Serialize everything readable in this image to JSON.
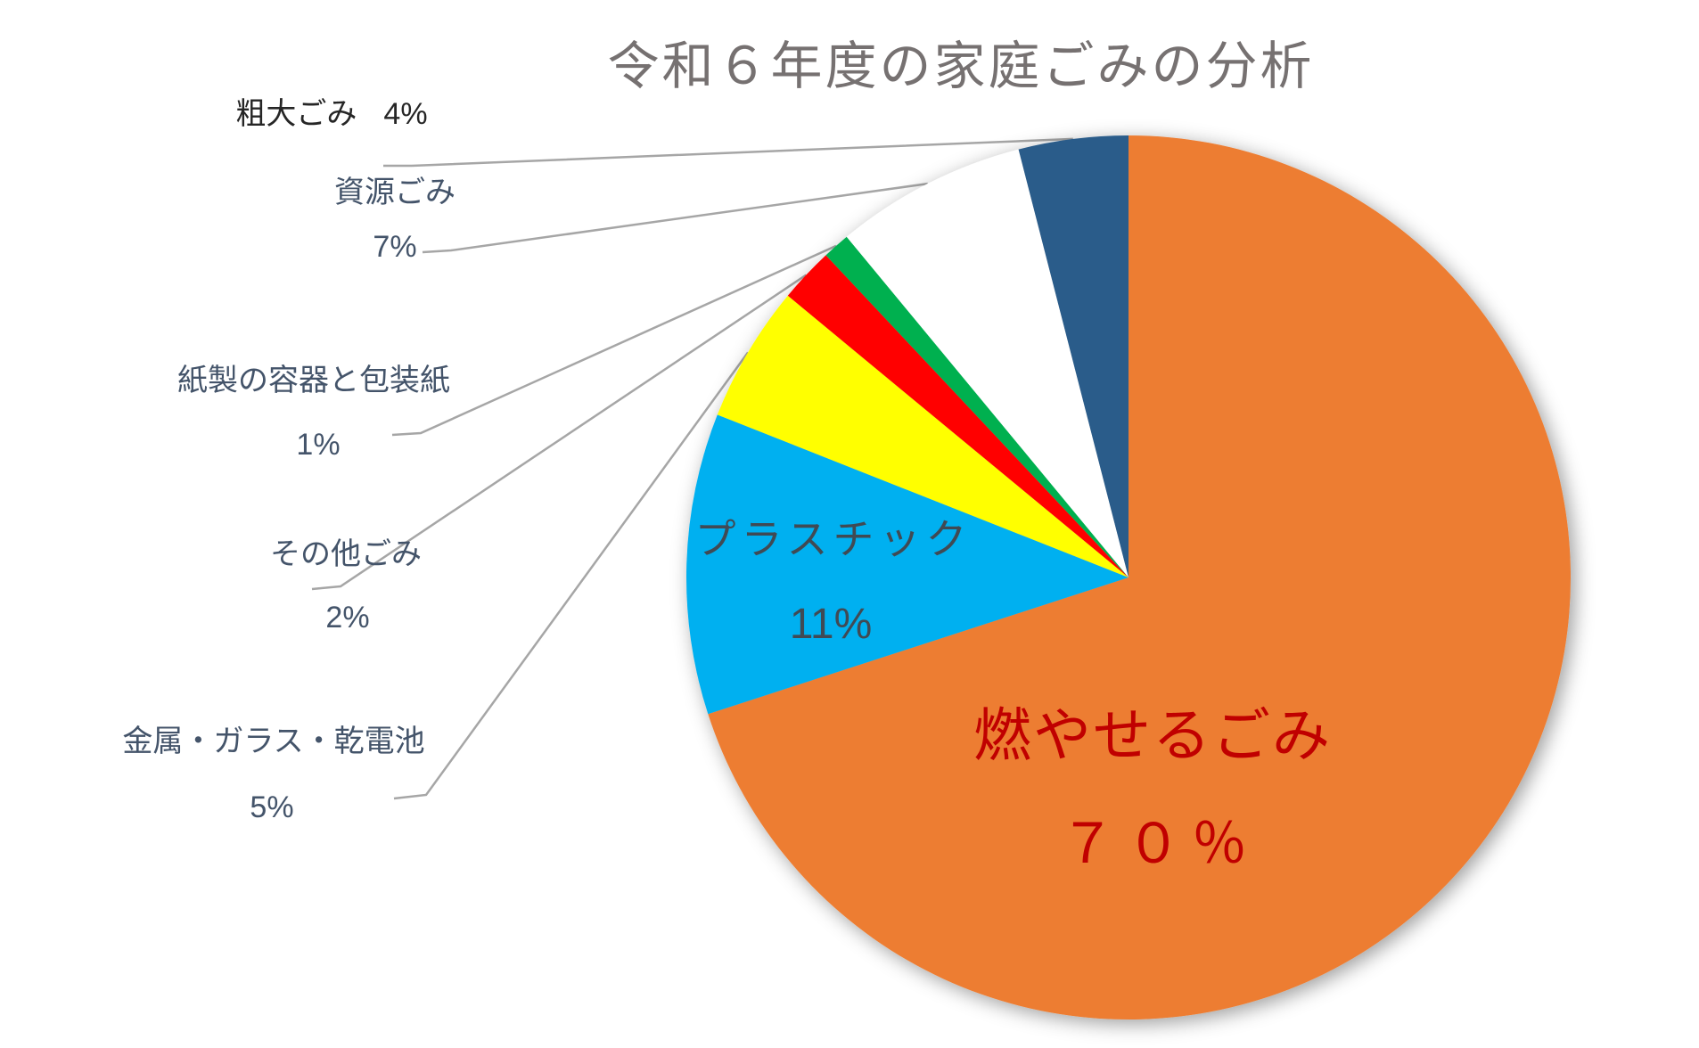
{
  "chart_data": {
    "type": "pie",
    "title": "令和６年度の家庭ごみの分析",
    "title_color": "#767171",
    "start_angle_deg": 0,
    "direction": "clockwise",
    "legend": "none",
    "leader_line_color": "#A6A6A6",
    "slices": [
      {
        "id": "moyaseru",
        "label": "燃やせるごみ",
        "value_pct": 70,
        "value_text": "７０％",
        "color": "#ED7D31",
        "label_placement": "inside",
        "label_color": "#C00000"
      },
      {
        "id": "plastic",
        "label": "プラスチック",
        "value_pct": 11,
        "value_text": "11%",
        "color": "#00B0F0",
        "label_placement": "inside",
        "label_color": "#404A54"
      },
      {
        "id": "kinzoku",
        "label": "金属・ガラス・乾電池",
        "value_pct": 5,
        "value_text": "5%",
        "color": "#FFFF00",
        "label_placement": "outside",
        "label_color": "#44546A"
      },
      {
        "id": "sonota",
        "label": "その他ごみ",
        "value_pct": 2,
        "value_text": "2%",
        "color": "#FF0000",
        "label_placement": "outside",
        "label_color": "#44546A"
      },
      {
        "id": "kamisei",
        "label": "紙製の容器と包装紙",
        "value_pct": 1,
        "value_text": "1%",
        "color": "#00B050",
        "label_placement": "outside",
        "label_color": "#44546A"
      },
      {
        "id": "shigen",
        "label": "資源ごみ",
        "value_pct": 7,
        "value_text": "7%",
        "color": "#FFFFFF",
        "label_placement": "outside",
        "label_color": "#44546A"
      },
      {
        "id": "sodai",
        "label": "粗大ごみ",
        "value_pct": 4,
        "value_text": "4%",
        "color": "#2A5C8A",
        "label_placement": "outside",
        "label_color": "#262626"
      }
    ]
  }
}
